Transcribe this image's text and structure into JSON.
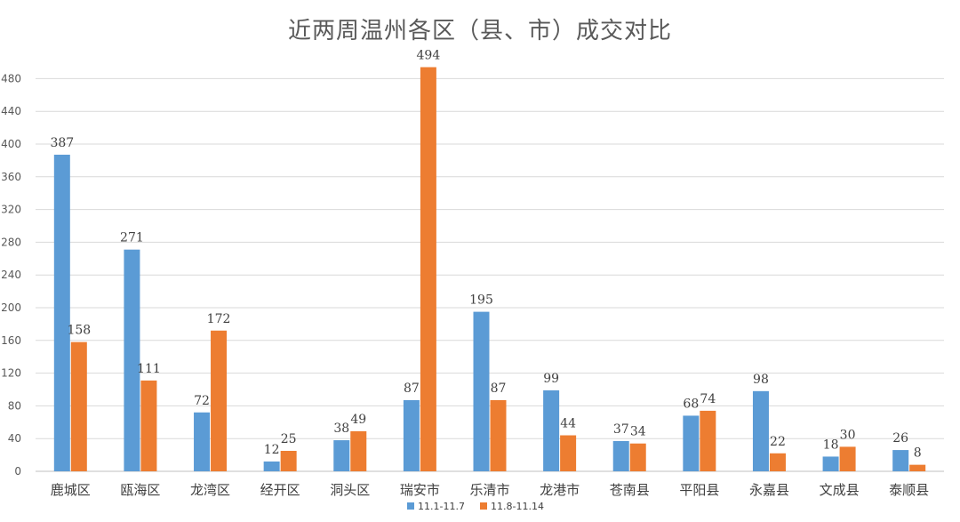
{
  "chart_data": {
    "type": "bar",
    "title": "近两周温州各区（县、市）成交对比",
    "categories": [
      "鹿城区",
      "瓯海区",
      "龙湾区",
      "经开区",
      "洞头区",
      "瑞安市",
      "乐清市",
      "龙港市",
      "苍南县",
      "平阳县",
      "永嘉县",
      "文成县",
      "泰顺县"
    ],
    "series": [
      {
        "name": "11.1-11.7",
        "color": "#5b9bd5",
        "values": [
          387,
          271,
          72,
          12,
          38,
          87,
          195,
          99,
          37,
          68,
          98,
          18,
          26
        ]
      },
      {
        "name": "11.8-11.14",
        "color": "#ed7d31",
        "values": [
          158,
          111,
          172,
          25,
          49,
          494,
          87,
          44,
          34,
          74,
          22,
          30,
          8
        ]
      }
    ],
    "ylim": [
      0,
      500
    ],
    "yticks": [
      0,
      40,
      80,
      120,
      160,
      200,
      240,
      280,
      320,
      360,
      400,
      440,
      480
    ],
    "grid": true,
    "legend_position": "bottom",
    "xlabel": "",
    "ylabel": ""
  }
}
